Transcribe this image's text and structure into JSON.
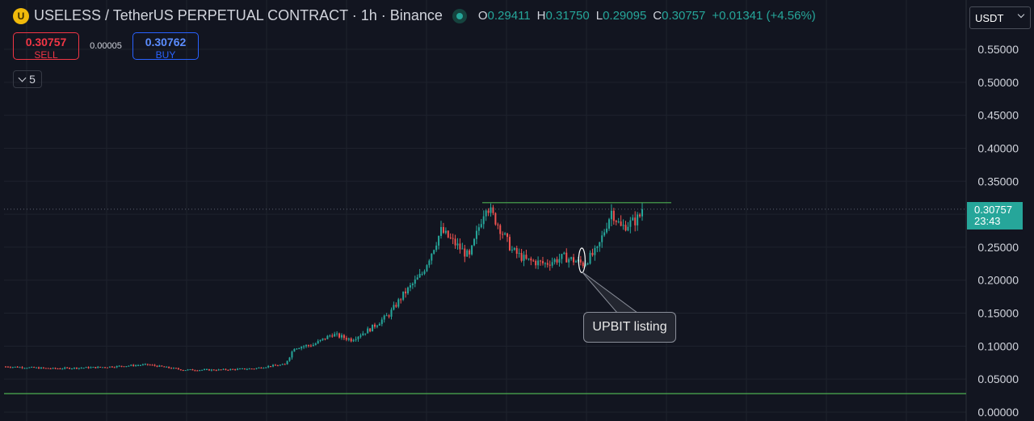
{
  "header": {
    "symbol": "USELESS / TetherUS PERPETUAL CONTRACT · 1h · Binance",
    "logo_letter": "U",
    "ohlc": {
      "o_label": "O",
      "o": "0.29411",
      "h_label": "H",
      "h": "0.31750",
      "l_label": "L",
      "l": "0.29095",
      "c_label": "C",
      "c": "0.30757",
      "change": "+0.01341 (+4.56%)"
    }
  },
  "trade": {
    "sell_price": "0.30757",
    "sell_label": "SELL",
    "spread": "0.00005",
    "buy_price": "0.30762",
    "buy_label": "BUY"
  },
  "indicator_toggle": {
    "count": "5"
  },
  "currency": {
    "selected": "USDT"
  },
  "price_tag": {
    "price": "0.30757",
    "countdown": "23:43"
  },
  "annotation": {
    "text": "UPBIT listing"
  },
  "colors": {
    "up": "#26a69a",
    "down": "#ef5350",
    "background": "#121520",
    "grid": "#1e222d",
    "hline": "#4caf50"
  },
  "chart_data": {
    "type": "candlestick",
    "ylim": [
      0.0,
      0.58
    ],
    "y_ticks": [
      "0.55000",
      "0.50000",
      "0.45000",
      "0.40000",
      "0.35000",
      "0.30000",
      "0.25000",
      "0.20000",
      "0.15000",
      "0.10000",
      "0.05000",
      "0.00000"
    ],
    "y_tick_values": [
      0.55,
      0.5,
      0.45,
      0.4,
      0.35,
      0.3,
      0.25,
      0.2,
      0.15,
      0.1,
      0.05,
      0.0
    ],
    "current_price": 0.30757,
    "horizontal_levels": [
      0.3175,
      0.028
    ],
    "resistance_bar_span": [
      94,
      124
    ],
    "price_path": [
      [
        0,
        0.069
      ],
      [
        20,
        0.066
      ],
      [
        40,
        0.068
      ],
      [
        60,
        0.072
      ],
      [
        75,
        0.064
      ],
      [
        90,
        0.064
      ],
      [
        105,
        0.066
      ],
      [
        112,
        0.07
      ],
      [
        118,
        0.072
      ],
      [
        122,
        0.098
      ],
      [
        130,
        0.102
      ],
      [
        138,
        0.118
      ],
      [
        146,
        0.11
      ],
      [
        154,
        0.126
      ],
      [
        162,
        0.148
      ],
      [
        168,
        0.178
      ],
      [
        176,
        0.21
      ],
      [
        184,
        0.275
      ],
      [
        190,
        0.255
      ],
      [
        196,
        0.235
      ],
      [
        203,
        0.315
      ],
      [
        208,
        0.285
      ],
      [
        214,
        0.245
      ],
      [
        220,
        0.23
      ],
      [
        228,
        0.225
      ],
      [
        236,
        0.235
      ],
      [
        244,
        0.225
      ],
      [
        250,
        0.245
      ],
      [
        256,
        0.305
      ],
      [
        260,
        0.28
      ],
      [
        266,
        0.29
      ],
      [
        270,
        0.305
      ]
    ],
    "candle_count": 270,
    "seed": 7,
    "highlight_region": {
      "start": 242,
      "end": 245,
      "low": 0.215,
      "high": 0.245
    }
  }
}
